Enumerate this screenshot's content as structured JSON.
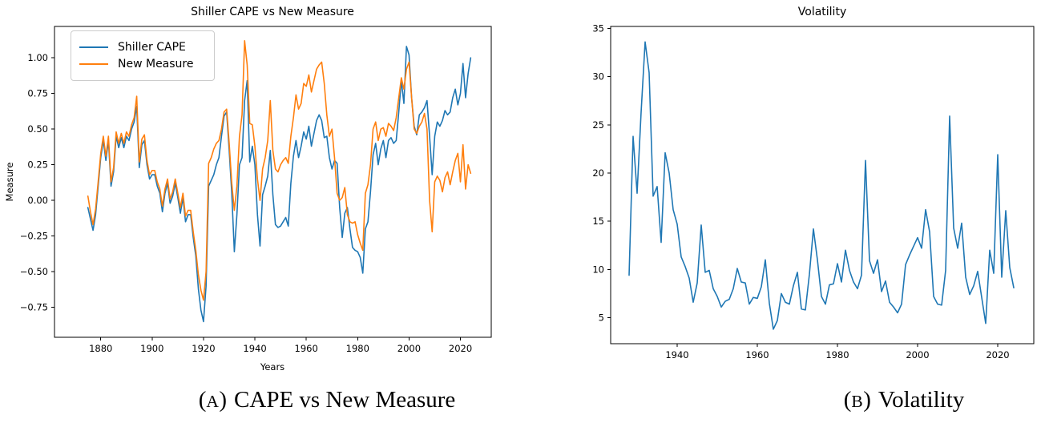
{
  "chart_data": [
    {
      "type": "line",
      "title": "Shiller CAPE vs New Measure",
      "xlabel": "Years",
      "ylabel": "Measure",
      "x_start": 1875,
      "x_step": 1,
      "xlim": [
        1862,
        2032
      ],
      "ylim": [
        -0.96,
        1.22
      ],
      "xticks": [
        1880,
        1900,
        1920,
        1940,
        1960,
        1980,
        2000,
        2020
      ],
      "yticks": [
        -0.75,
        -0.5,
        -0.25,
        0.0,
        0.25,
        0.5,
        0.75,
        1.0
      ],
      "ytick_decimals": 2,
      "grid": false,
      "legend_position": "upper left",
      "series": [
        {
          "name": "Shiller CAPE",
          "color": "#1f77b4",
          "values": [
            -0.05,
            -0.13,
            -0.21,
            -0.1,
            0.1,
            0.3,
            0.42,
            0.28,
            0.42,
            0.1,
            0.2,
            0.45,
            0.37,
            0.44,
            0.37,
            0.45,
            0.42,
            0.5,
            0.55,
            0.66,
            0.23,
            0.39,
            0.42,
            0.25,
            0.15,
            0.18,
            0.18,
            0.1,
            0.05,
            -0.08,
            0.05,
            0.12,
            -0.02,
            0.03,
            0.12,
            0.02,
            -0.09,
            0.02,
            -0.15,
            -0.1,
            -0.1,
            -0.26,
            -0.39,
            -0.62,
            -0.77,
            -0.85,
            -0.6,
            0.1,
            0.14,
            0.18,
            0.25,
            0.3,
            0.45,
            0.59,
            0.62,
            0.35,
            0.05,
            -0.36,
            -0.1,
            0.25,
            0.3,
            0.7,
            0.84,
            0.27,
            0.38,
            0.25,
            -0.1,
            -0.32,
            0.04,
            0.1,
            0.17,
            0.35,
            0.04,
            -0.17,
            -0.19,
            -0.18,
            -0.15,
            -0.12,
            -0.18,
            0.12,
            0.31,
            0.42,
            0.3,
            0.38,
            0.48,
            0.43,
            0.52,
            0.38,
            0.47,
            0.56,
            0.6,
            0.56,
            0.44,
            0.45,
            0.3,
            0.22,
            0.28,
            0.26,
            -0.05,
            -0.26,
            -0.09,
            -0.05,
            -0.2,
            -0.33,
            -0.35,
            -0.36,
            -0.4,
            -0.51,
            -0.2,
            -0.15,
            0.06,
            0.32,
            0.4,
            0.25,
            0.36,
            0.42,
            0.3,
            0.42,
            0.44,
            0.4,
            0.42,
            0.62,
            0.84,
            0.68,
            1.08,
            1.02,
            0.72,
            0.52,
            0.46,
            0.6,
            0.62,
            0.65,
            0.7,
            0.45,
            0.18,
            0.45,
            0.55,
            0.52,
            0.56,
            0.63,
            0.6,
            0.62,
            0.72,
            0.78,
            0.67,
            0.75,
            0.96,
            0.72,
            0.89,
            1.0
          ]
        },
        {
          "name": "New Measure",
          "color": "#ff7f0e",
          "values": [
            0.03,
            -0.08,
            -0.17,
            -0.06,
            0.13,
            0.33,
            0.45,
            0.31,
            0.45,
            0.13,
            0.23,
            0.48,
            0.4,
            0.47,
            0.4,
            0.48,
            0.45,
            0.53,
            0.58,
            0.73,
            0.27,
            0.43,
            0.46,
            0.28,
            0.18,
            0.21,
            0.21,
            0.13,
            0.08,
            -0.04,
            0.08,
            0.15,
            0.01,
            0.06,
            0.15,
            0.05,
            -0.05,
            0.05,
            -0.11,
            -0.07,
            -0.07,
            -0.22,
            -0.35,
            -0.52,
            -0.63,
            -0.7,
            -0.5,
            0.26,
            0.3,
            0.36,
            0.4,
            0.42,
            0.5,
            0.62,
            0.64,
            0.4,
            0.12,
            -0.07,
            0.1,
            0.45,
            0.6,
            1.12,
            0.95,
            0.54,
            0.53,
            0.38,
            0.15,
            0.0,
            0.22,
            0.3,
            0.42,
            0.7,
            0.35,
            0.22,
            0.2,
            0.25,
            0.28,
            0.3,
            0.26,
            0.45,
            0.58,
            0.74,
            0.64,
            0.68,
            0.82,
            0.8,
            0.88,
            0.76,
            0.84,
            0.92,
            0.95,
            0.97,
            0.82,
            0.6,
            0.45,
            0.5,
            0.3,
            0.05,
            0.0,
            0.02,
            0.09,
            -0.1,
            -0.15,
            -0.16,
            -0.15,
            -0.24,
            -0.3,
            -0.35,
            0.05,
            0.11,
            0.25,
            0.5,
            0.55,
            0.42,
            0.5,
            0.51,
            0.45,
            0.54,
            0.52,
            0.49,
            0.58,
            0.72,
            0.86,
            0.78,
            0.92,
            0.97,
            0.72,
            0.5,
            0.47,
            0.52,
            0.55,
            0.61,
            0.5,
            0.0,
            -0.22,
            0.13,
            0.17,
            0.14,
            0.06,
            0.16,
            0.2,
            0.11,
            0.2,
            0.28,
            0.33,
            0.13,
            0.39,
            0.08,
            0.25,
            0.19
          ]
        }
      ]
    },
    {
      "type": "line",
      "title": "Volatility",
      "xlabel": "",
      "ylabel": "",
      "x_start": 1928,
      "x_step": 1,
      "xlim": [
        1923.4,
        2029
      ],
      "ylim": [
        2.3,
        35.2
      ],
      "xticks": [
        1940,
        1960,
        1980,
        2000,
        2020
      ],
      "yticks": [
        5,
        10,
        15,
        20,
        25,
        30,
        35
      ],
      "ytick_decimals": 0,
      "grid": false,
      "legend_position": "none",
      "series": [
        {
          "name": "Volatility",
          "color": "#1f77b4",
          "values": [
            9.4,
            23.8,
            17.9,
            26.3,
            33.6,
            30.4,
            17.6,
            18.6,
            12.8,
            22.1,
            20.0,
            16.2,
            14.7,
            11.3,
            10.3,
            9.1,
            6.6,
            8.6,
            14.6,
            9.7,
            9.9,
            8.0,
            7.2,
            6.1,
            6.7,
            6.9,
            8.0,
            10.1,
            8.7,
            8.6,
            6.4,
            7.1,
            7.0,
            8.2,
            11.0,
            6.5,
            3.8,
            4.7,
            7.5,
            6.6,
            6.4,
            8.3,
            9.7,
            5.9,
            5.8,
            9.5,
            14.2,
            11.0,
            7.2,
            6.4,
            8.4,
            8.5,
            10.6,
            8.7,
            12.0,
            9.9,
            8.7,
            8.0,
            9.4,
            21.3,
            10.9,
            9.6,
            11.0,
            7.7,
            8.8,
            6.6,
            6.1,
            5.5,
            6.4,
            10.5,
            11.5,
            12.4,
            13.3,
            12.2,
            16.2,
            13.9,
            7.2,
            6.4,
            6.3,
            9.9,
            25.9,
            14.3,
            12.2,
            14.8,
            9.2,
            7.4,
            8.3,
            9.8,
            7.1,
            4.4,
            12.0,
            9.6,
            21.9,
            9.2,
            16.1,
            10.2,
            8.1
          ]
        }
      ]
    }
  ],
  "captions": {
    "a": {
      "open": "(",
      "marker": "A",
      "close": ")",
      "text": "CAPE vs New Measure"
    },
    "b": {
      "open": "(",
      "marker": "B",
      "close": ")",
      "text": "Volatility"
    }
  },
  "colors": {
    "cape_blue": "#1f77b4",
    "measure_orange": "#ff7f0e",
    "axis": "#000000",
    "legend_border": "#cccccc"
  }
}
